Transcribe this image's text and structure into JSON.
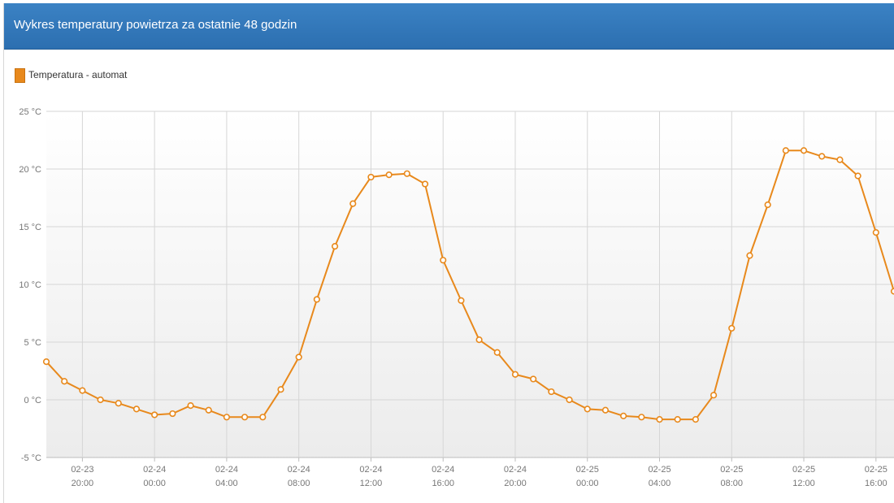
{
  "panel": {
    "title": "Wykres temperatury powietrza za ostatnie 48 godzin"
  },
  "legend": {
    "label": "Temperatura - automat",
    "swatch_color": "#e8891c"
  },
  "chart_data": {
    "type": "line",
    "title": "Wykres temperatury powietrza za ostatnie 48 godzin",
    "xlabel": "",
    "ylabel": "",
    "ylim": [
      -5,
      25
    ],
    "yticks": [
      {
        "value": -5,
        "label": "-5 °C"
      },
      {
        "value": 0,
        "label": "0 °C"
      },
      {
        "value": 5,
        "label": "5 °C"
      },
      {
        "value": 10,
        "label": "10 °C"
      },
      {
        "value": 15,
        "label": "15 °C"
      },
      {
        "value": 20,
        "label": "20 °C"
      },
      {
        "value": 25,
        "label": "25 °C"
      }
    ],
    "x_unit": "hours since 02-23 20:00",
    "xlim": [
      -2,
      45
    ],
    "xticks": [
      {
        "value": 0,
        "date": "02-23",
        "time": "20:00"
      },
      {
        "value": 4,
        "date": "02-24",
        "time": "00:00"
      },
      {
        "value": 8,
        "date": "02-24",
        "time": "04:00"
      },
      {
        "value": 12,
        "date": "02-24",
        "time": "08:00"
      },
      {
        "value": 16,
        "date": "02-24",
        "time": "12:00"
      },
      {
        "value": 20,
        "date": "02-24",
        "time": "16:00"
      },
      {
        "value": 24,
        "date": "02-24",
        "time": "20:00"
      },
      {
        "value": 28,
        "date": "02-25",
        "time": "00:00"
      },
      {
        "value": 32,
        "date": "02-25",
        "time": "04:00"
      },
      {
        "value": 36,
        "date": "02-25",
        "time": "08:00"
      },
      {
        "value": 40,
        "date": "02-25",
        "time": "12:00"
      },
      {
        "value": 44,
        "date": "02-25",
        "time": "16:00"
      }
    ],
    "grid": true,
    "legend_position": "top-left",
    "series": [
      {
        "name": "Temperatura - automat",
        "color": "#e8891c",
        "x": [
          -2,
          -1,
          0,
          1,
          2,
          3,
          4,
          5,
          6,
          7,
          8,
          9,
          10,
          11,
          12,
          13,
          14,
          15,
          16,
          17,
          18,
          19,
          20,
          21,
          22,
          23,
          24,
          25,
          26,
          27,
          28,
          29,
          30,
          31,
          32,
          33,
          34,
          35,
          36,
          37,
          38,
          39,
          40,
          41,
          42,
          43,
          44,
          45
        ],
        "values": [
          3.3,
          1.6,
          0.8,
          0.0,
          -0.3,
          -0.8,
          -1.3,
          -1.2,
          -0.5,
          -0.9,
          -1.5,
          -1.5,
          -1.5,
          0.9,
          3.7,
          8.7,
          13.3,
          17.0,
          19.3,
          19.5,
          19.6,
          18.7,
          12.1,
          8.6,
          5.2,
          4.1,
          2.2,
          1.8,
          0.7,
          0.0,
          -0.8,
          -0.9,
          -1.4,
          -1.5,
          -1.7,
          -1.7,
          -1.7,
          0.4,
          6.2,
          12.5,
          16.9,
          21.6,
          21.6,
          21.1,
          20.8,
          19.4,
          14.5,
          9.4
        ]
      }
    ]
  }
}
